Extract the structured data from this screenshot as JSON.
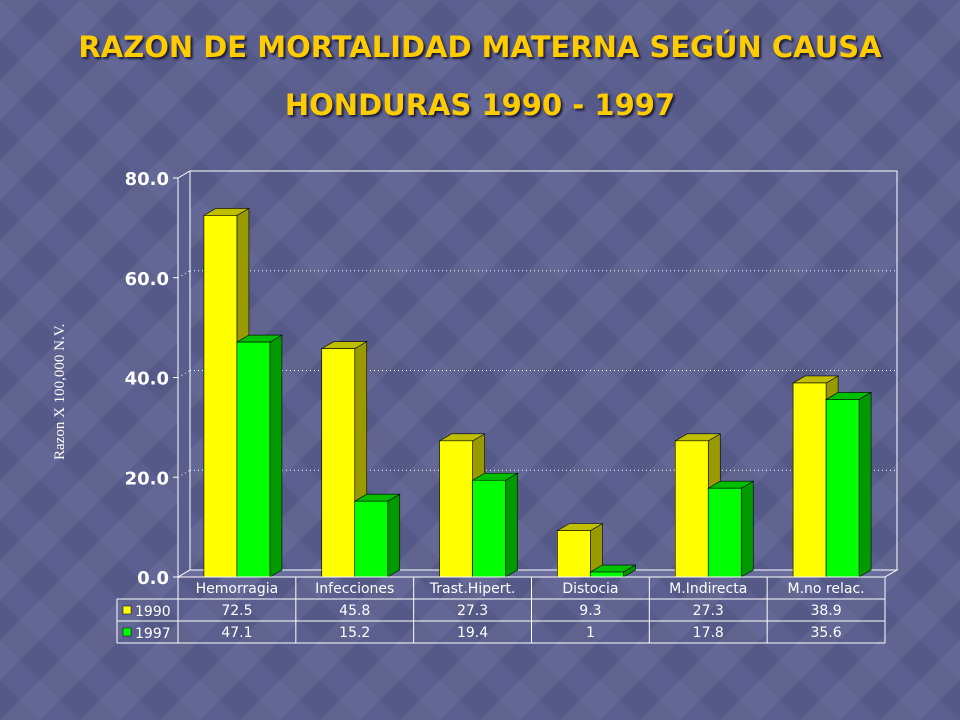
{
  "title_line1": "RAZON DE MORTALIDAD MATERNA SEGÚN CAUSA",
  "title_line2": "HONDURAS 1990 - 1997",
  "chart_data": {
    "type": "bar",
    "title": "RAZON DE MORTALIDAD MATERNA SEGÚN CAUSA HONDURAS 1990 - 1997",
    "ylabel": "Razon X 100,000 N.V.",
    "xlabel": "",
    "categories": [
      "Hemorragia",
      "Infecciones",
      "Trast.Hipert.",
      "Distocia",
      "M.Indirecta",
      "M.no relac."
    ],
    "series": [
      {
        "name": "1990",
        "values": [
          72.5,
          45.8,
          27.3,
          9.3,
          27.3,
          38.9
        ],
        "labels": [
          "72.5",
          "45.8",
          "27.3",
          "9.3",
          "27.3",
          "38.9"
        ],
        "color": "#ffff00"
      },
      {
        "name": "1997",
        "values": [
          47.1,
          15.2,
          19.4,
          1,
          17.8,
          35.6
        ],
        "labels": [
          "47.1",
          "15.2",
          "19.4",
          "1",
          "17.8",
          "35.6"
        ],
        "color": "#00ff00"
      }
    ],
    "ylim": [
      0,
      80
    ],
    "yticks": [
      "0.0",
      "20.0",
      "40.0",
      "60.0",
      "80.0"
    ],
    "grid": true,
    "legend": "data table below chart",
    "data_table": true
  }
}
